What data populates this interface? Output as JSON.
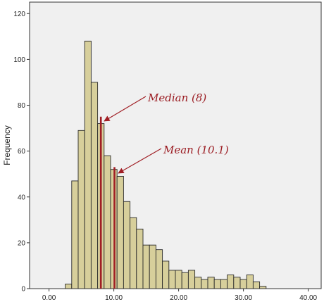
{
  "chart_data": {
    "type": "bar",
    "title": "",
    "xlabel": "",
    "ylabel": "Frequency",
    "xlim": [
      -3,
      42
    ],
    "ylim": [
      0,
      125
    ],
    "x_ticks": [
      0,
      10,
      20,
      30,
      40
    ],
    "x_tick_labels": [
      "0.00",
      "10.00",
      "20.00",
      "30.00",
      "40.00"
    ],
    "y_ticks": [
      0,
      20,
      40,
      60,
      80,
      100,
      120
    ],
    "y_tick_labels": [
      "0",
      "20",
      "40",
      "60",
      "80",
      "100",
      "120"
    ],
    "grid": false,
    "bin_width": 1,
    "bin_starts": [
      2.5,
      3.5,
      4.5,
      5.5,
      6.5,
      7.5,
      8.5,
      9.5,
      10.5,
      11.5,
      12.5,
      13.5,
      14.5,
      15.5,
      16.5,
      17.5,
      18.5,
      19.5,
      20.5,
      21.5,
      22.5,
      23.5,
      24.5,
      25.5,
      26.5,
      27.5,
      28.5,
      29.5,
      30.5,
      31.5,
      32.5
    ],
    "values": [
      2,
      47,
      69,
      108,
      90,
      72,
      58,
      52,
      49,
      38,
      31,
      26,
      19,
      19,
      17,
      12,
      8,
      8,
      7,
      8,
      5,
      4,
      5,
      4,
      4,
      6,
      5,
      4,
      6,
      3,
      1
    ],
    "bar_color": "#d7cf9b",
    "bar_edge_color": "#2b2b2b",
    "marker_color": "#a01e24",
    "markers": [
      {
        "x": 8,
        "height": 75,
        "label": "Median (8)"
      },
      {
        "x": 10.1,
        "height": 53,
        "label": "Mean (10.1)"
      }
    ],
    "plot_background": "#f0f0f0"
  }
}
